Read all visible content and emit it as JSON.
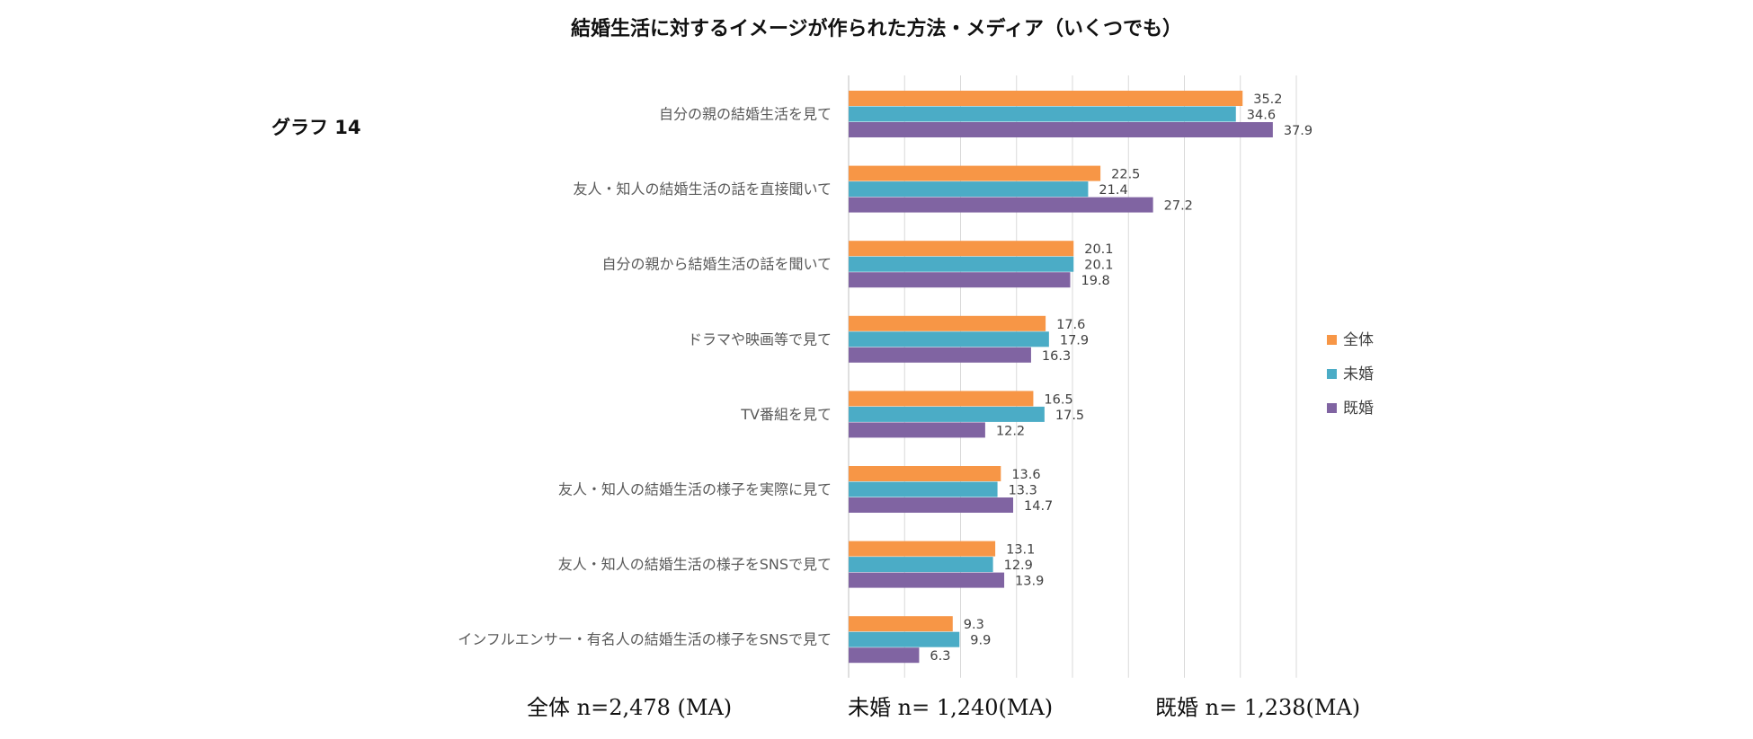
{
  "title": "結婚生活に対するイメージが作られた方法・メディア（いくつでも）",
  "graph_label": "グラフ 14",
  "chart_data": {
    "type": "bar",
    "orientation": "horizontal",
    "title": "結婚生活に対するイメージが作られた方法・メディア（いくつでも）",
    "xlim": [
      0,
      40
    ],
    "grid": true,
    "legend_position": "right",
    "categories": [
      "自分の親の結婚生活を見て",
      "友人・知人の結婚生活の話を直接聞いて",
      "自分の親から結婚生活の話を聞いて",
      "ドラマや映画等で見て",
      "TV番組を見て",
      "友人・知人の結婚生活の様子を実際に見て",
      "友人・知人の結婚生活の様子をSNSで見て",
      "インフルエンサー・有名人の結婚生活の様子をSNSで見て"
    ],
    "series": [
      {
        "name": "全体",
        "color": "#F79646",
        "values": [
          35.2,
          22.5,
          20.1,
          17.6,
          16.5,
          13.6,
          13.1,
          9.3
        ],
        "labels": [
          "35.2",
          "22.5",
          "20.1",
          "17.6",
          "16.5",
          "13.6",
          "13.1",
          "9.3"
        ]
      },
      {
        "name": "未婚",
        "color": "#4BACC6",
        "values": [
          34.6,
          21.4,
          20.1,
          17.9,
          17.5,
          13.3,
          12.9,
          9.9
        ],
        "labels": [
          "34.6",
          "21.4",
          "20.1",
          "17.9",
          "17.5",
          "13.3",
          "12.9",
          "9.9"
        ]
      },
      {
        "name": "既婚",
        "color": "#8064A2",
        "values": [
          37.9,
          27.2,
          19.8,
          16.3,
          12.2,
          14.7,
          13.9,
          6.3
        ],
        "labels": [
          "37.9",
          "27.2",
          "19.8",
          "16.3",
          "12.2",
          "14.7",
          "13.9",
          "6.3"
        ]
      }
    ]
  },
  "footer": {
    "total": "全体 n=2,478 (MA)",
    "unmarried": "未婚 n= 1,240(MA)",
    "married": "既婚 n= 1,238(MA)"
  }
}
